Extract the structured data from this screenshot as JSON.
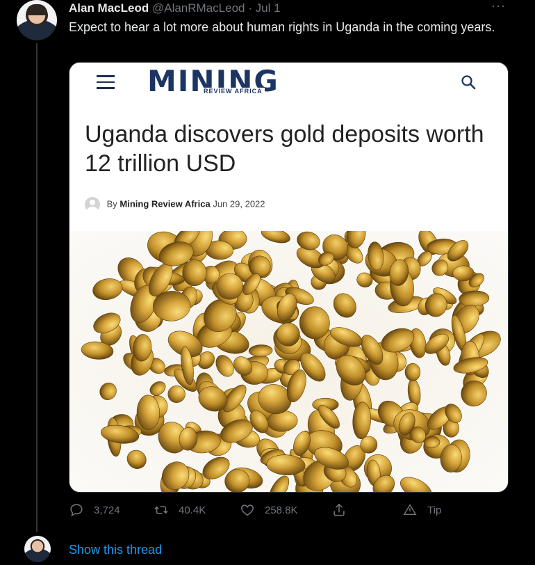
{
  "tweet": {
    "author_name": "Alan MacLeod",
    "handle": "@AlanRMacLeod",
    "separator": "·",
    "date": "Jul 1",
    "more_label": "···",
    "text": "Expect to hear a lot more about human rights in Uganda in the coming years."
  },
  "card": {
    "site_logo_main": "MINING",
    "site_logo_sub": "REVIEW AFRICA",
    "headline": "Uganda discovers gold deposits worth 12 trillion USD",
    "byline_prefix": "By",
    "byline_author": "Mining Review Africa",
    "byline_date": "Jun 29, 2022",
    "accent_color": "#1d3563"
  },
  "actions": {
    "reply_count": "3,724",
    "retweet_count": "40.4K",
    "like_count": "258.8K",
    "tip_label": "Tip"
  },
  "thread": {
    "show_label": "Show this thread"
  }
}
